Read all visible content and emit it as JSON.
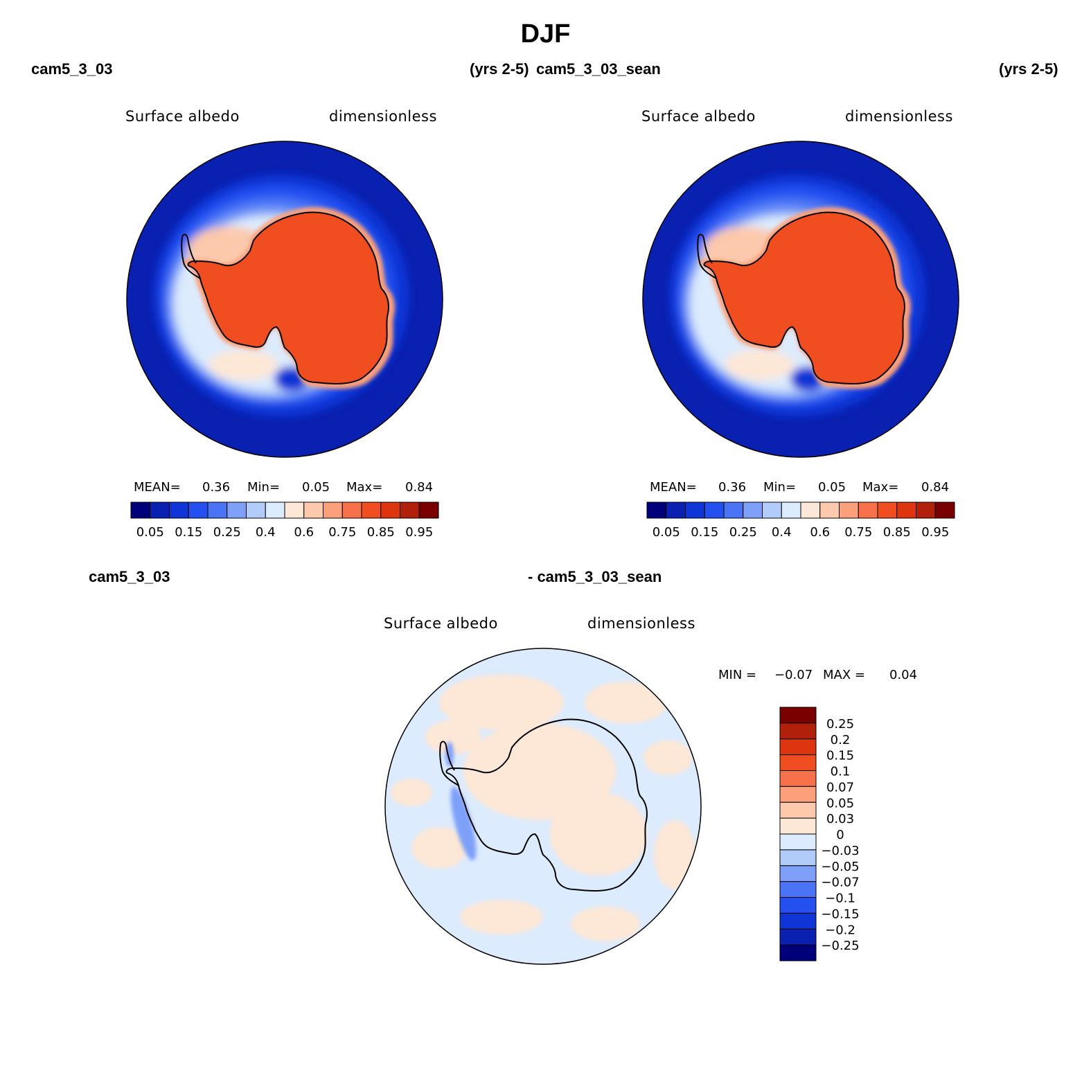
{
  "figure": {
    "season": "DJF",
    "case_left": "cam5_3_03",
    "yrs_left": "(yrs 2-5)",
    "case_right": "cam5_3_03_sean",
    "yrs_right": "(yrs 2-5)",
    "diff_case_a": "cam5_3_03",
    "diff_case_b": "- cam5_3_03_sean"
  },
  "panels": [
    {
      "variable": "Surface albedo",
      "units": "dimensionless",
      "stats": {
        "mean_label": "MEAN=",
        "mean": "0.36",
        "min_label": "Min=",
        "min": "0.05",
        "max_label": "Max=",
        "max": "0.84"
      }
    },
    {
      "variable": "Surface albedo",
      "units": "dimensionless",
      "stats": {
        "mean_label": "MEAN=",
        "mean": "0.36",
        "min_label": "Min=",
        "min": "0.05",
        "max_label": "Max=",
        "max": "0.84"
      }
    },
    {
      "variable": "Surface albedo",
      "units": "dimensionless",
      "stats": {
        "min_label": "MIN =",
        "min": "−0.07",
        "max_label": "MAX =",
        "max": "0.04"
      }
    }
  ],
  "chart_data": [
    {
      "type": "heatmap",
      "projection": "south-polar-stereographic",
      "title": "Surface albedo (cam5_3_03)",
      "units": "dimensionless",
      "colorbar": {
        "orientation": "horizontal",
        "colors": [
          "#00007a",
          "#0a20b0",
          "#1035d6",
          "#2450f0",
          "#4a74f5",
          "#7ea0f8",
          "#b2ccfa",
          "#dcebfd",
          "#fde7d6",
          "#fdc9ac",
          "#fba07a",
          "#f7724a",
          "#f04d20",
          "#dc3510",
          "#b0200a",
          "#7a0000"
        ],
        "labels": [
          "0.05",
          "0.15",
          "0.25",
          "0.4",
          "0.6",
          "0.75",
          "0.85",
          "0.95"
        ]
      },
      "regions": {
        "ocean": 0.05,
        "sea_ice_edge": 0.3,
        "antarctica_interior": 0.8,
        "coastal_ice": 0.65
      }
    },
    {
      "type": "heatmap",
      "projection": "south-polar-stereographic",
      "title": "Surface albedo (cam5_3_03_sean)",
      "units": "dimensionless",
      "colorbar": {
        "orientation": "horizontal",
        "colors": [
          "#00007a",
          "#0a20b0",
          "#1035d6",
          "#2450f0",
          "#4a74f5",
          "#7ea0f8",
          "#b2ccfa",
          "#dcebfd",
          "#fde7d6",
          "#fdc9ac",
          "#fba07a",
          "#f7724a",
          "#f04d20",
          "#dc3510",
          "#b0200a",
          "#7a0000"
        ],
        "labels": [
          "0.05",
          "0.15",
          "0.25",
          "0.4",
          "0.6",
          "0.75",
          "0.85",
          "0.95"
        ]
      },
      "regions": {
        "ocean": 0.05,
        "sea_ice_edge": 0.3,
        "antarctica_interior": 0.8,
        "coastal_ice": 0.65
      }
    },
    {
      "type": "heatmap",
      "projection": "south-polar-stereographic",
      "title": "Surface albedo difference (cam5_3_03 - cam5_3_03_sean)",
      "units": "dimensionless",
      "colorbar": {
        "orientation": "vertical",
        "colors_top_to_bottom": [
          "#7a0000",
          "#b0200a",
          "#dc3510",
          "#f04d20",
          "#f7724a",
          "#fba07a",
          "#fdc9ac",
          "#fde7d6",
          "#dcebfd",
          "#b2ccfa",
          "#7ea0f8",
          "#4a74f5",
          "#2450f0",
          "#1035d6",
          "#0a20b0",
          "#00007a"
        ],
        "labels_top_to_bottom": [
          "0.25",
          "0.2",
          "0.15",
          "0.1",
          "0.07",
          "0.05",
          "0.03",
          "0",
          "−0.03",
          "−0.05",
          "−0.07",
          "−0.1",
          "−0.15",
          "−0.2",
          "−0.25"
        ]
      },
      "regions": {
        "background": 0.0,
        "positive_patches": 0.01,
        "negative_peninsula": -0.06
      }
    }
  ]
}
